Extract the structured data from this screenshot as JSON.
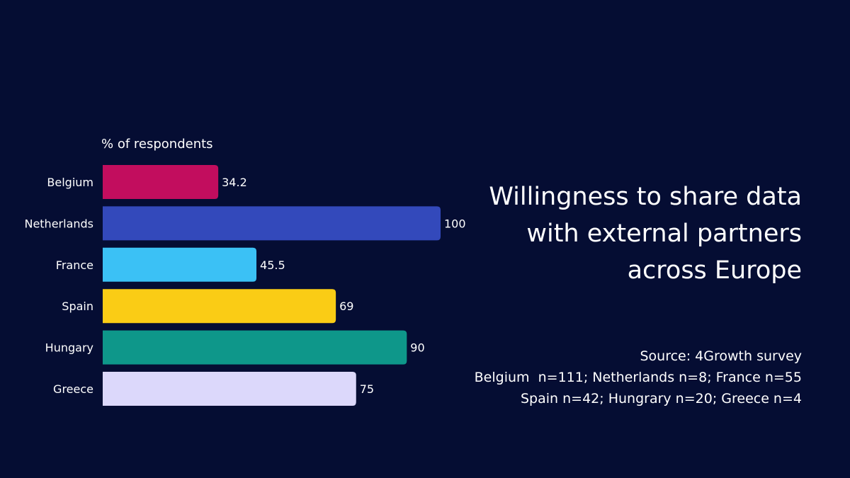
{
  "chart_data": {
    "type": "bar",
    "orientation": "horizontal",
    "ylabel": "% of respondents",
    "categories": [
      "Belgium",
      "Netherlands",
      "France",
      "Spain",
      "Hungary",
      "Greece"
    ],
    "values": [
      34.2,
      100,
      45.5,
      69,
      90,
      75
    ],
    "value_labels": [
      "34.2",
      "100",
      "45.5",
      "69",
      "90",
      "75"
    ],
    "colors": [
      "#c20d5e",
      "#3349bb",
      "#3bc1f5",
      "#facc15",
      "#0e978a",
      "#dcd8fb"
    ],
    "xlim": [
      0,
      100
    ],
    "grid": false
  },
  "title_lines": [
    "Willingness to share data",
    "with external partners",
    "across Europe"
  ],
  "source_lines": [
    "Source: 4Growth survey",
    "Belgium  n=111; Netherlands n=8; France n=55",
    "Spain n=42; Hungrary n=20; Greece n=4"
  ]
}
